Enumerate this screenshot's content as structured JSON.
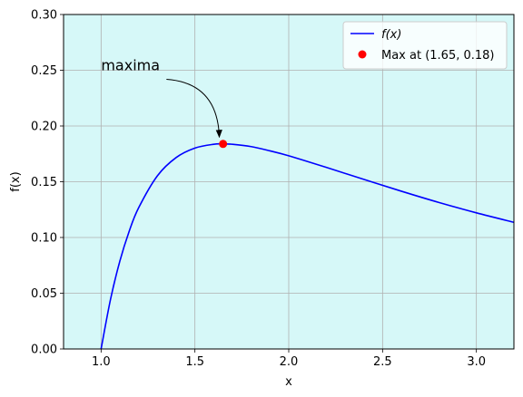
{
  "chart_data": {
    "type": "line",
    "title": "",
    "xlabel": "x",
    "ylabel": "f(x)",
    "xlim": [
      0.8,
      3.2
    ],
    "ylim": [
      0,
      0.3
    ],
    "xticks": [
      1.0,
      1.5,
      2.0,
      2.5,
      3.0
    ],
    "xtick_labels": [
      "1.0",
      "1.5",
      "2.0",
      "2.5",
      "3.0"
    ],
    "yticks": [
      0,
      0.05,
      0.1,
      0.15,
      0.2,
      0.25,
      0.3
    ],
    "ytick_labels": [
      "0.00",
      "0.05",
      "0.10",
      "0.15",
      "0.20",
      "0.25",
      "0.30"
    ],
    "grid": true,
    "background_color": "#d6f8f8",
    "series": [
      {
        "name": "f(x)",
        "color": "#0000ff",
        "x": [
          1.0,
          1.05,
          1.1,
          1.15,
          1.2,
          1.3,
          1.4,
          1.5,
          1.6,
          1.65,
          1.7,
          1.8,
          1.9,
          2.0,
          2.2,
          2.4,
          2.6,
          2.8,
          3.0,
          3.2
        ],
        "y": [
          0.0,
          0.0443,
          0.0788,
          0.1057,
          0.1266,
          0.1553,
          0.1717,
          0.1802,
          0.1836,
          0.1839,
          0.1836,
          0.1815,
          0.1777,
          0.1733,
          0.1629,
          0.1521,
          0.1415,
          0.1314,
          0.1221,
          0.1136
        ]
      }
    ],
    "points": [
      {
        "name": "Max at (1.65, 0.18)",
        "x": 1.65,
        "y": 0.1839,
        "color": "#ff0000"
      }
    ],
    "annotation": {
      "text": "maxima",
      "text_x": 1.0,
      "text_y": 0.25,
      "target_x": 1.63,
      "target_y": 0.19
    },
    "legend": {
      "position": "top-right",
      "items": [
        {
          "label": "f(x)",
          "marker": "line",
          "color": "#0000ff"
        },
        {
          "label": "Max at (1.65, 0.18)",
          "marker": "dot",
          "color": "#ff0000"
        }
      ]
    }
  }
}
